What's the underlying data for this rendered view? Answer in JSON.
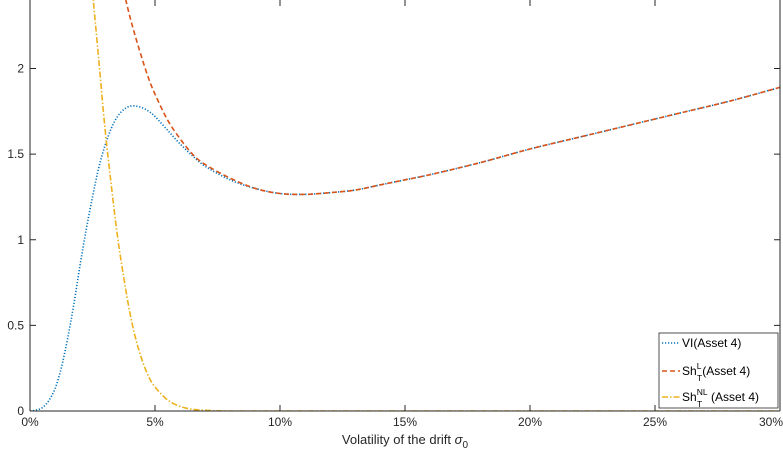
{
  "chart_data": {
    "type": "line",
    "title": "",
    "xlabel": "Volatility of the drift",
    "xlabel_symbol": "σ",
    "xlabel_subscript": "0",
    "ylabel": "",
    "xlim": [
      0,
      0.3
    ],
    "ylim": [
      0,
      2.4
    ],
    "x_tick_values": [
      0,
      0.05,
      0.1,
      0.15,
      0.2,
      0.25,
      0.3
    ],
    "x_tick_labels": [
      "0%",
      "5%",
      "10%",
      "15%",
      "20%",
      "25%",
      "30%"
    ],
    "y_tick_values": [
      0,
      0.5,
      1,
      1.5,
      2
    ],
    "y_tick_labels": [
      "0",
      "0.5",
      "1",
      "1.5",
      "2"
    ],
    "grid": false,
    "legend_location": "bottom-right",
    "series": [
      {
        "name": "VI(Asset 4)",
        "legend_base": "VI",
        "legend_suffix": "(Asset 4)",
        "color": "#0072BD",
        "style": "dotted",
        "x": [
          0,
          0.0025,
          0.005,
          0.0075,
          0.01,
          0.0125,
          0.015,
          0.0175,
          0.02,
          0.0225,
          0.025,
          0.0275,
          0.03,
          0.0325,
          0.035,
          0.0375,
          0.04,
          0.0425,
          0.045,
          0.0475,
          0.05,
          0.055,
          0.06,
          0.065,
          0.07,
          0.08,
          0.09,
          0.1,
          0.11,
          0.12,
          0.13,
          0.14,
          0.15,
          0.16,
          0.18,
          0.2,
          0.22,
          0.24,
          0.26,
          0.28,
          0.3
        ],
        "y": [
          0,
          0.005,
          0.02,
          0.06,
          0.13,
          0.25,
          0.42,
          0.62,
          0.85,
          1.06,
          1.25,
          1.42,
          1.55,
          1.65,
          1.72,
          1.76,
          1.78,
          1.78,
          1.77,
          1.75,
          1.72,
          1.64,
          1.56,
          1.49,
          1.43,
          1.35,
          1.3,
          1.27,
          1.265,
          1.275,
          1.29,
          1.32,
          1.35,
          1.38,
          1.45,
          1.53,
          1.6,
          1.67,
          1.74,
          1.81,
          1.89
        ]
      },
      {
        "name": "Sh_T^L(Asset 4)",
        "legend_base": "Sh",
        "legend_sup": "L",
        "legend_sub": "T",
        "legend_suffix": "(Asset 4)",
        "color": "#D95319",
        "style": "dashed",
        "x": [
          0.0375,
          0.04,
          0.0425,
          0.045,
          0.0475,
          0.05,
          0.055,
          0.06,
          0.065,
          0.07,
          0.08,
          0.09,
          0.1,
          0.11,
          0.12,
          0.13,
          0.14,
          0.15,
          0.16,
          0.18,
          0.2,
          0.22,
          0.24,
          0.26,
          0.28,
          0.3
        ],
        "y": [
          2.45,
          2.3,
          2.17,
          2.05,
          1.94,
          1.85,
          1.7,
          1.59,
          1.5,
          1.44,
          1.36,
          1.3,
          1.27,
          1.265,
          1.275,
          1.29,
          1.32,
          1.35,
          1.38,
          1.45,
          1.53,
          1.6,
          1.67,
          1.74,
          1.81,
          1.89
        ]
      },
      {
        "name": "Sh_T^NL(Asset 4)",
        "legend_base": "Sh",
        "legend_sup": "NL",
        "legend_sub": "T",
        "legend_suffix": "(Asset 4)",
        "color": "#EDB120",
        "style": "dashdot",
        "x": [
          0.025,
          0.0275,
          0.03,
          0.0325,
          0.035,
          0.0375,
          0.04,
          0.0425,
          0.045,
          0.0475,
          0.05,
          0.055,
          0.06,
          0.065,
          0.07,
          0.075,
          0.08,
          0.1,
          0.15,
          0.2,
          0.25,
          0.3
        ],
        "y": [
          2.45,
          2.05,
          1.65,
          1.32,
          1.02,
          0.78,
          0.57,
          0.41,
          0.29,
          0.2,
          0.14,
          0.065,
          0.027,
          0.01,
          0.004,
          0.001,
          0,
          0,
          0,
          0,
          0,
          0
        ]
      }
    ]
  }
}
